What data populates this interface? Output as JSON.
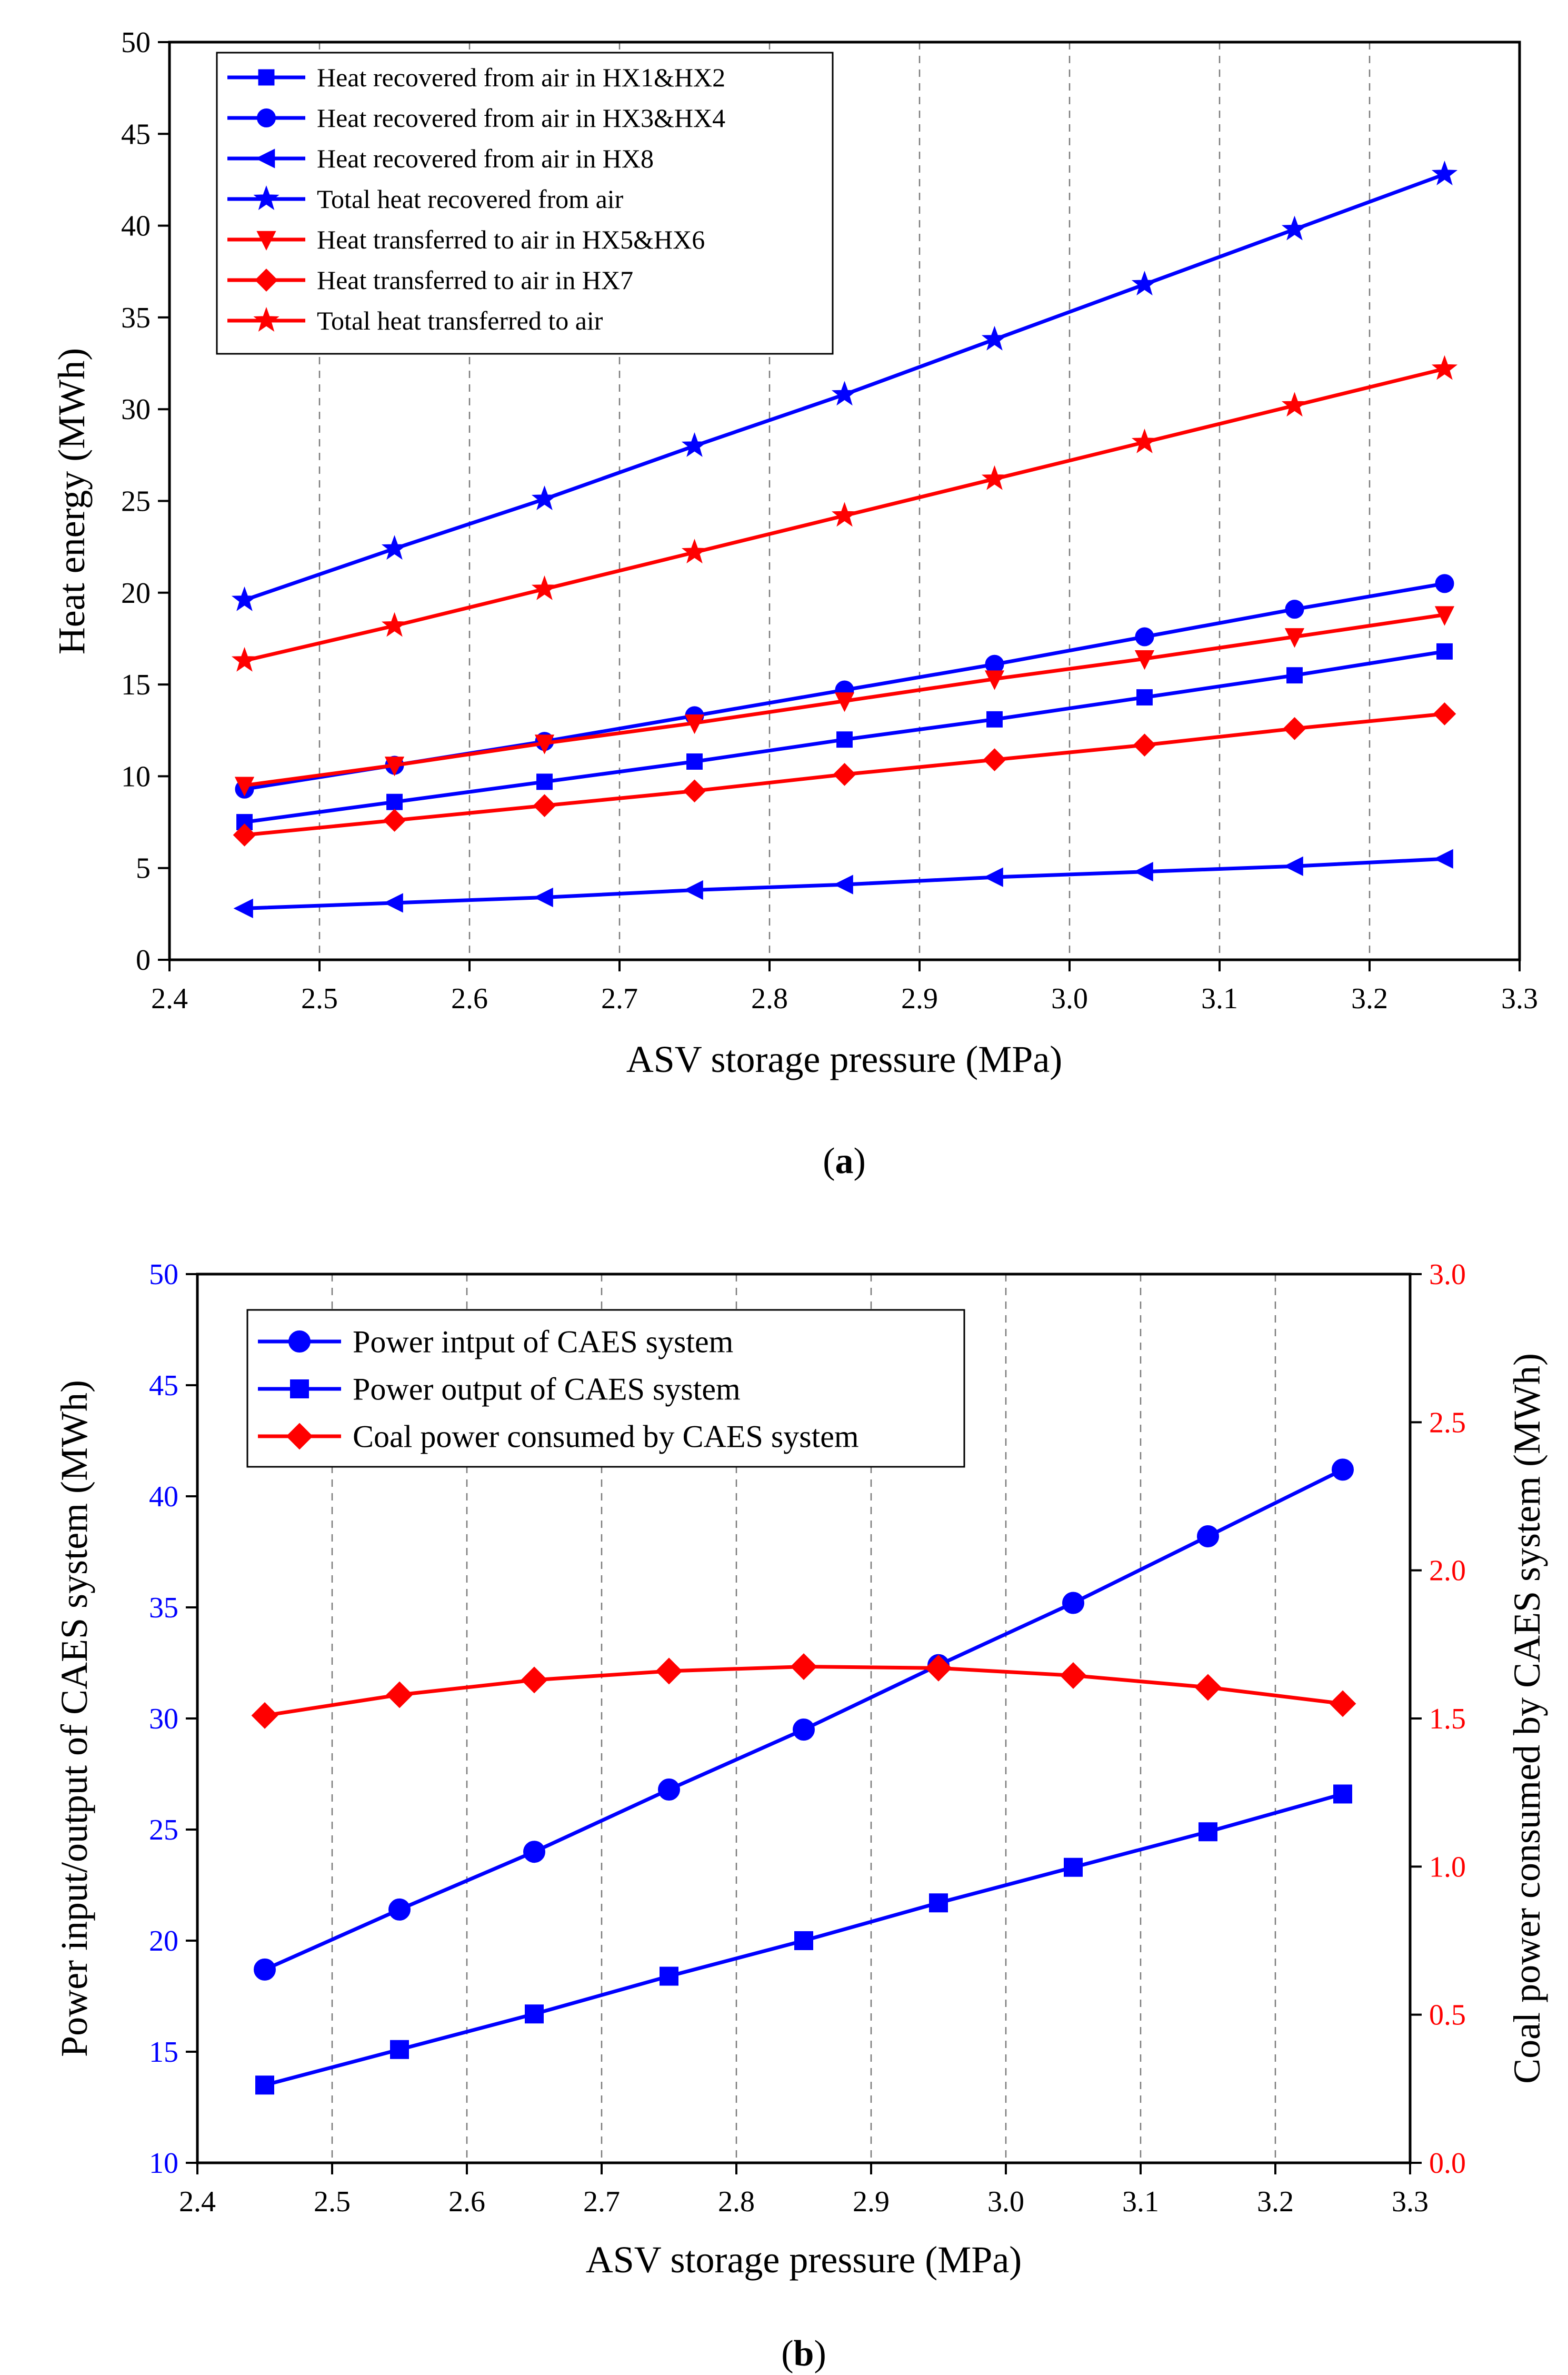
{
  "chart_data": [
    {
      "type": "line",
      "caption": "(a)",
      "caption_open": "(",
      "caption_letter": "a",
      "caption_close": ")",
      "xlabel": "ASV storage pressure (MPa)",
      "ylabel": "Heat energy (MWh)",
      "xlim": [
        2.4,
        3.3
      ],
      "ylim": [
        0,
        50
      ],
      "xticks": [
        "2.4",
        "2.5",
        "2.6",
        "2.7",
        "2.8",
        "2.9",
        "3.0",
        "3.1",
        "3.2",
        "3.3"
      ],
      "yticks": [
        "0",
        "5",
        "10",
        "15",
        "20",
        "25",
        "30",
        "35",
        "40",
        "45",
        "50"
      ],
      "x": [
        2.45,
        2.55,
        2.65,
        2.75,
        2.85,
        2.95,
        3.05,
        3.15,
        3.25
      ],
      "legend_position": "top-left",
      "series": [
        {
          "name": "Heat recovered from air in HX1&HX2",
          "color": "#0000ff",
          "marker": "square",
          "values": [
            7.5,
            8.6,
            9.7,
            10.8,
            12.0,
            13.1,
            14.3,
            15.5,
            16.8
          ]
        },
        {
          "name": "Heat recovered from air in HX3&HX4",
          "color": "#0000ff",
          "marker": "circle",
          "values": [
            9.3,
            10.6,
            11.9,
            13.3,
            14.7,
            16.1,
            17.6,
            19.1,
            20.5
          ]
        },
        {
          "name": "Heat recovered from air in HX8",
          "color": "#0000ff",
          "marker": "triangle-left",
          "values": [
            2.8,
            3.1,
            3.4,
            3.8,
            4.1,
            4.5,
            4.8,
            5.1,
            5.5
          ]
        },
        {
          "name": "Total heat recovered from air",
          "color": "#0000ff",
          "marker": "star",
          "values": [
            19.6,
            22.4,
            25.1,
            28.0,
            30.8,
            33.8,
            36.8,
            39.8,
            42.8
          ]
        },
        {
          "name": "Heat transferred to air in HX5&HX6",
          "color": "#ff0000",
          "marker": "triangle-down",
          "values": [
            9.5,
            10.6,
            11.8,
            12.9,
            14.1,
            15.3,
            16.4,
            17.6,
            18.8
          ]
        },
        {
          "name": "Heat transferred to air in HX7",
          "color": "#ff0000",
          "marker": "diamond",
          "values": [
            6.8,
            7.6,
            8.4,
            9.2,
            10.1,
            10.9,
            11.7,
            12.6,
            13.4
          ]
        },
        {
          "name": "Total heat transferred to air",
          "color": "#ff0000",
          "marker": "star",
          "values": [
            16.3,
            18.2,
            20.2,
            22.2,
            24.2,
            26.2,
            28.2,
            30.2,
            32.2
          ]
        }
      ]
    },
    {
      "type": "line",
      "caption": "(b)",
      "caption_open": "(",
      "caption_letter": "b",
      "caption_close": ")",
      "xlabel": "ASV storage pressure (MPa)",
      "ylabel": "Power input/output of CAES system (MWh)",
      "ylabel_right": "Coal power consumed by CAES system (MWh)",
      "ylabel_color": "#0000ff",
      "ylabel_right_color": "#ff0000",
      "xlim": [
        2.4,
        3.3
      ],
      "ylim": [
        10,
        50
      ],
      "ylim_right": [
        0.0,
        3.0
      ],
      "xticks": [
        "2.4",
        "2.5",
        "2.6",
        "2.7",
        "2.8",
        "2.9",
        "3.0",
        "3.1",
        "3.2",
        "3.3"
      ],
      "yticks": [
        "10",
        "15",
        "20",
        "25",
        "30",
        "35",
        "40",
        "45",
        "50"
      ],
      "yticks_right": [
        "0.0",
        "0.5",
        "1.0",
        "1.5",
        "2.0",
        "2.5",
        "3.0"
      ],
      "x": [
        2.45,
        2.55,
        2.65,
        2.75,
        2.85,
        2.95,
        3.05,
        3.15,
        3.25
      ],
      "legend_position": "top-left",
      "series": [
        {
          "name": "Power intput of CAES system",
          "color": "#0000ff",
          "marker": "circle",
          "axis": "left",
          "values": [
            18.7,
            21.4,
            24.0,
            26.8,
            29.5,
            32.4,
            35.2,
            38.2,
            41.2
          ]
        },
        {
          "name": "Power output of CAES system",
          "color": "#0000ff",
          "marker": "square",
          "axis": "left",
          "values": [
            13.5,
            15.1,
            16.7,
            18.4,
            20.0,
            21.7,
            23.3,
            24.9,
            26.6
          ]
        },
        {
          "name": "Coal power consumed by CAES system",
          "color": "#ff0000",
          "marker": "diamond",
          "axis": "right",
          "values": [
            1.51,
            1.58,
            1.63,
            1.66,
            1.675,
            1.67,
            1.645,
            1.605,
            1.55
          ]
        }
      ]
    }
  ]
}
